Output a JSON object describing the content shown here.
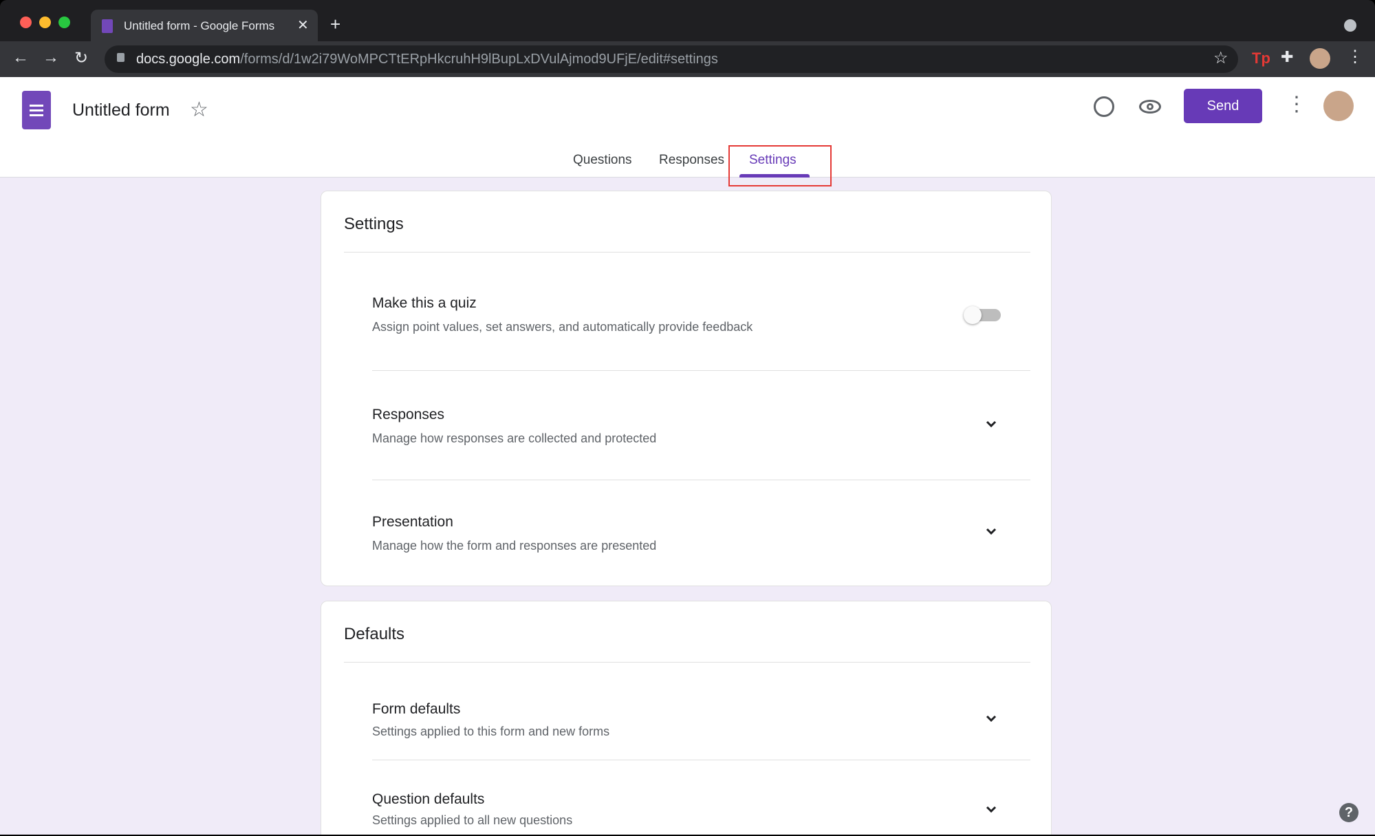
{
  "browser": {
    "tab_title": "Untitled form - Google Forms",
    "url_host": "docs.google.com",
    "url_path": "/forms/d/1w2i79WoMPCTtERpHkcruhH9lBupLxDVulAjmod9UFjE/edit#settings",
    "extension_label": "Tp"
  },
  "header": {
    "form_title": "Untitled form",
    "send_label": "Send"
  },
  "tabs": [
    {
      "label": "Questions"
    },
    {
      "label": "Responses"
    },
    {
      "label": "Settings",
      "active": true
    }
  ],
  "accent": "#673ab7",
  "settings": {
    "title": "Settings",
    "items": [
      {
        "title": "Make this a quiz",
        "subtitle": "Assign point values, set answers, and automatically provide feedback",
        "control": "toggle",
        "on": false
      },
      {
        "title": "Responses",
        "subtitle": "Manage how responses are collected and protected",
        "control": "chevron-down-icon"
      },
      {
        "title": "Presentation",
        "subtitle": "Manage how the form and responses are presented",
        "control": "chevron-down-icon"
      }
    ]
  },
  "defaults": {
    "title": "Defaults",
    "items": [
      {
        "title": "Form defaults",
        "subtitle": "Settings applied to this form and new forms",
        "control": "chevron-down-icon"
      },
      {
        "title": "Question defaults",
        "subtitle": "Settings applied to all new questions",
        "control": "chevron-down-icon"
      }
    ]
  }
}
